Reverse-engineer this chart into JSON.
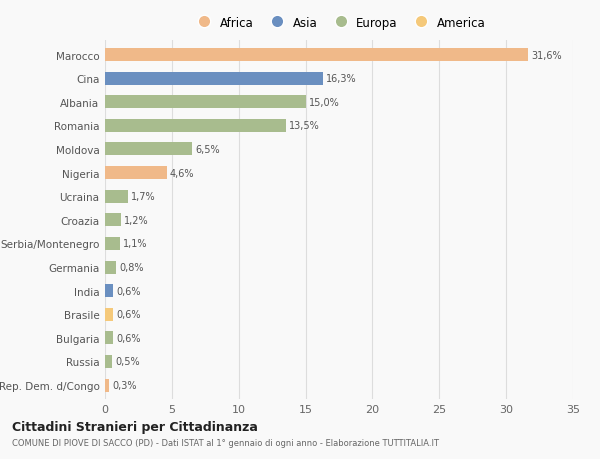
{
  "categories": [
    "Marocco",
    "Cina",
    "Albania",
    "Romania",
    "Moldova",
    "Nigeria",
    "Ucraina",
    "Croazia",
    "Serbia/Montenegro",
    "Germania",
    "India",
    "Brasile",
    "Bulgaria",
    "Russia",
    "Rep. Dem. d/Congo"
  ],
  "values": [
    31.6,
    16.3,
    15.0,
    13.5,
    6.5,
    4.6,
    1.7,
    1.2,
    1.1,
    0.8,
    0.6,
    0.6,
    0.6,
    0.5,
    0.3
  ],
  "labels": [
    "31,6%",
    "16,3%",
    "15,0%",
    "13,5%",
    "6,5%",
    "4,6%",
    "1,7%",
    "1,2%",
    "1,1%",
    "0,8%",
    "0,6%",
    "0,6%",
    "0,6%",
    "0,5%",
    "0,3%"
  ],
  "colors": [
    "#F0B989",
    "#6A8FC0",
    "#A8BC8E",
    "#A8BC8E",
    "#A8BC8E",
    "#F0B989",
    "#A8BC8E",
    "#A8BC8E",
    "#A8BC8E",
    "#A8BC8E",
    "#6A8FC0",
    "#F5C97A",
    "#A8BC8E",
    "#A8BC8E",
    "#F0B989"
  ],
  "legend_colors": {
    "Africa": "#F0B989",
    "Asia": "#6A8FC0",
    "Europa": "#A8BC8E",
    "America": "#F5C97A"
  },
  "legend_order": [
    "Africa",
    "Asia",
    "Europa",
    "America"
  ],
  "xlim": [
    0,
    35
  ],
  "xticks": [
    0,
    5,
    10,
    15,
    20,
    25,
    30,
    35
  ],
  "title": "Cittadini Stranieri per Cittadinanza",
  "subtitle": "COMUNE DI PIOVE DI SACCO (PD) - Dati ISTAT al 1° gennaio di ogni anno - Elaborazione TUTTITALIA.IT",
  "bg_color": "#f9f9f9",
  "grid_color": "#dddddd",
  "bar_height": 0.55
}
